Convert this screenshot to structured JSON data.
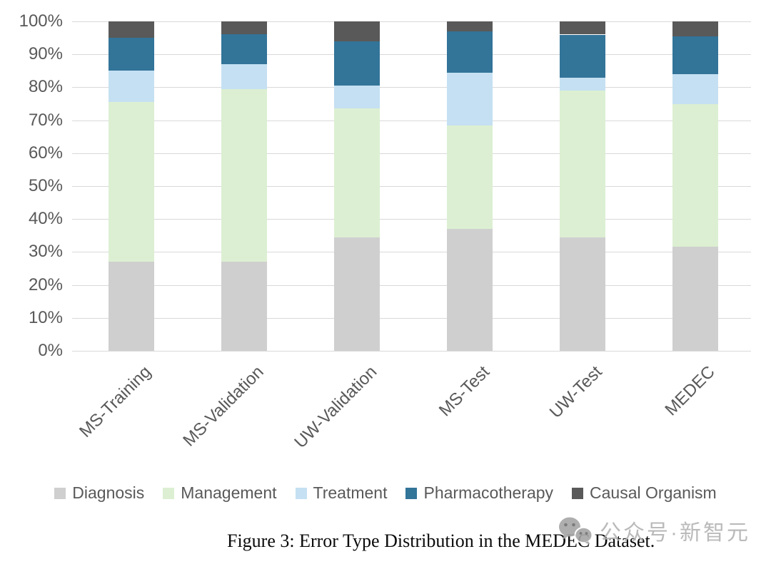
{
  "chart_data": {
    "type": "bar",
    "stacked": true,
    "percent_stacked": true,
    "title": "",
    "xlabel": "",
    "ylabel": "",
    "categories": [
      "MS-Training",
      "MS-Validation",
      "UW-Validation",
      "MS-Test",
      "UW-Test",
      "MEDEC"
    ],
    "series": [
      {
        "name": "Diagnosis",
        "color": "#cfcfcf",
        "values": [
          27.0,
          27.0,
          34.5,
          37.0,
          34.5,
          31.5
        ]
      },
      {
        "name": "Management",
        "color": "#dcefd2",
        "values": [
          48.5,
          52.5,
          39.0,
          31.5,
          44.5,
          43.5
        ]
      },
      {
        "name": "Treatment",
        "color": "#c5e0f2",
        "values": [
          9.5,
          7.5,
          7.0,
          16.0,
          4.0,
          9.0
        ]
      },
      {
        "name": "Pharmacotherapy",
        "color": "#337499",
        "values": [
          10.0,
          9.0,
          13.5,
          12.5,
          13.0,
          11.5
        ]
      },
      {
        "name": "Causal Organism",
        "color": "#595959",
        "values": [
          5.0,
          4.0,
          6.0,
          3.0,
          4.0,
          4.5
        ]
      }
    ],
    "ylim": [
      0,
      100
    ],
    "y_tick_step": 10,
    "y_tick_labels": [
      "0%",
      "10%",
      "20%",
      "30%",
      "40%",
      "50%",
      "60%",
      "70%",
      "80%",
      "90%",
      "100%"
    ],
    "grid": true,
    "legend_position": "bottom"
  },
  "caption": "Figure 3: Error Type Distribution in the MEDEC Dataset.",
  "watermark": {
    "icon": "wechat-icon",
    "text": "公众号·新智元"
  },
  "colors": {
    "axis_text": "#595959",
    "gridline": "#d9d9d9",
    "watermark": "#b3b3b3"
  }
}
